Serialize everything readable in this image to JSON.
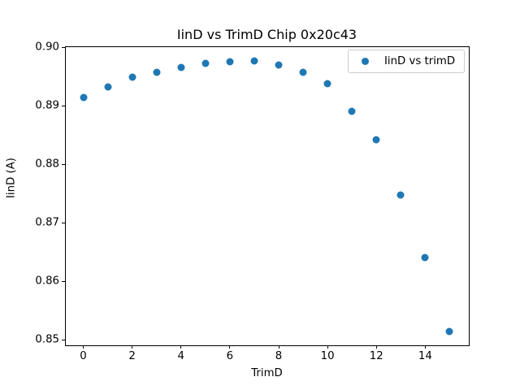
{
  "title": "IinD vs TrimD Chip 0x20c43",
  "xlabel": "TrimD",
  "ylabel": "IinD (A)",
  "legend": {
    "label": "IinD vs trimD"
  },
  "colors": {
    "marker": "#1f77b4",
    "spine": "#000000",
    "legend_border": "#cccccc",
    "background": "#ffffff",
    "text": "#000000"
  },
  "chart_data": {
    "type": "scatter",
    "title": "IinD vs TrimD Chip 0x20c43",
    "xlabel": "TrimD",
    "ylabel": "IinD (A)",
    "series": [
      {
        "name": "IinD vs trimD",
        "x": [
          0,
          1,
          2,
          3,
          4,
          5,
          6,
          7,
          8,
          9,
          10,
          11,
          12,
          13,
          14,
          15
        ],
        "y": [
          0.8914,
          0.8932,
          0.8949,
          0.8958,
          0.8966,
          0.8973,
          0.8975,
          0.8977,
          0.897,
          0.8958,
          0.8938,
          0.8891,
          0.8842,
          0.8748,
          0.8641,
          0.8514
        ],
        "color": "#1f77b4"
      }
    ],
    "xlim": [
      -0.75,
      15.75
    ],
    "ylim": [
      0.8492,
      0.9002
    ],
    "xticks": [
      0,
      2,
      4,
      6,
      8,
      10,
      12,
      14
    ],
    "xtick_labels": [
      "0",
      "2",
      "4",
      "6",
      "8",
      "10",
      "12",
      "14"
    ],
    "yticks": [
      0.85,
      0.86,
      0.87,
      0.88,
      0.89,
      0.9
    ],
    "ytick_labels": [
      "0.85",
      "0.86",
      "0.87",
      "0.88",
      "0.89",
      "0.90"
    ],
    "grid": false,
    "legend_position": "upper right"
  }
}
